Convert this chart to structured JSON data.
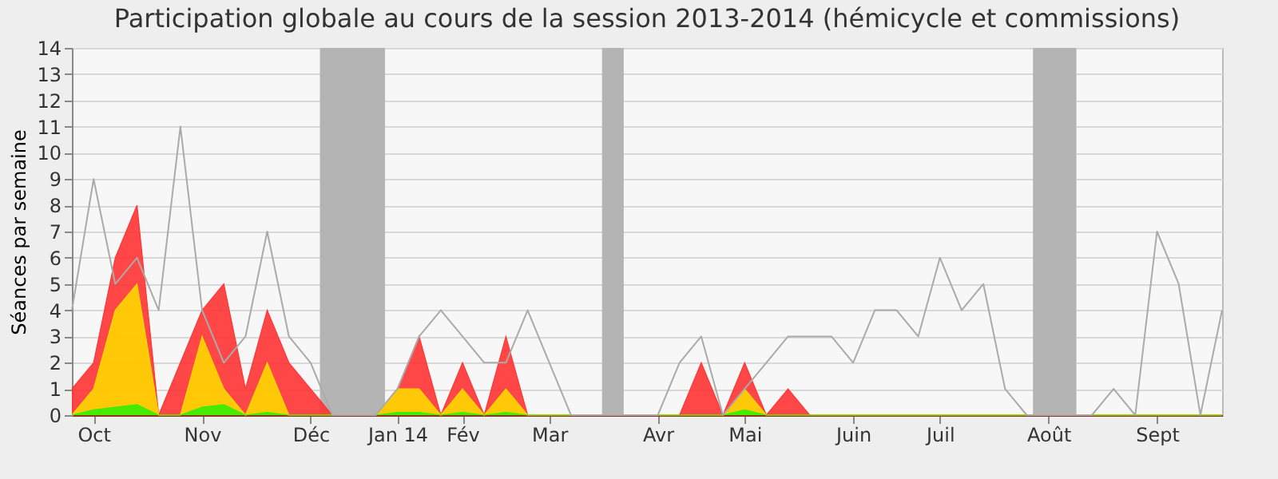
{
  "chart_data": {
    "type": "area",
    "title": "Participation globale au cours de la session 2013-2014 (hémicycle et commissions)",
    "ylabel": "Séances par semaine",
    "x": [
      "2013-09-30",
      "2013-10-07",
      "2013-10-14",
      "2013-10-21",
      "2013-10-28",
      "2013-11-04",
      "2013-11-11",
      "2013-11-18",
      "2013-11-25",
      "2013-12-02",
      "2013-12-09",
      "2013-12-16",
      "2013-12-23",
      "2013-12-30",
      "2014-01-06",
      "2014-01-13",
      "2014-01-20",
      "2014-01-27",
      "2014-02-03",
      "2014-02-10",
      "2014-02-17",
      "2014-02-24",
      "2014-03-03",
      "2014-03-10",
      "2014-03-17",
      "2014-03-24",
      "2014-03-31",
      "2014-04-07",
      "2014-04-14",
      "2014-04-21",
      "2014-04-28",
      "2014-05-05",
      "2014-05-12",
      "2014-05-19",
      "2014-05-26",
      "2014-06-02",
      "2014-06-09",
      "2014-06-16",
      "2014-06-23",
      "2014-06-30",
      "2014-07-07",
      "2014-07-14",
      "2014-07-21",
      "2014-07-28",
      "2014-08-04",
      "2014-08-11",
      "2014-08-18",
      "2014-08-25",
      "2014-09-01",
      "2014-09-08",
      "2014-09-15",
      "2014-09-22",
      "2014-09-29",
      "2014-10-06"
    ],
    "series": [
      {
        "color": "#ff3333",
        "values": [
          1,
          2,
          6,
          8,
          0,
          2,
          4,
          5,
          1,
          4,
          2,
          1,
          0,
          0,
          0,
          1,
          3,
          0,
          2,
          0,
          3,
          0,
          0,
          0,
          0,
          0,
          0,
          0,
          0,
          2,
          0,
          2,
          0,
          1,
          0,
          0,
          0,
          0,
          0,
          0,
          0,
          0,
          0,
          0,
          0,
          0,
          0,
          0,
          0,
          0,
          0,
          0,
          0,
          0
        ]
      },
      {
        "color": "#ffd700",
        "values": [
          0,
          1,
          4,
          5,
          0,
          0,
          3,
          1,
          0,
          2,
          0,
          0,
          0,
          0,
          0,
          1,
          1,
          0,
          1,
          0,
          1,
          0,
          0,
          0,
          0,
          0,
          0,
          0,
          0,
          0,
          0,
          1,
          0,
          0,
          0,
          0,
          0,
          0,
          0,
          0,
          0,
          0,
          0,
          0,
          0,
          0,
          0,
          0,
          0,
          0,
          0,
          0,
          0,
          0
        ]
      },
      {
        "color": "#33ee00",
        "values": [
          0,
          0.2,
          0.3,
          0.4,
          0,
          0,
          0.3,
          0.4,
          0,
          0.1,
          0,
          0,
          0,
          0,
          0,
          0.1,
          0.1,
          0,
          0.1,
          0,
          0.1,
          0,
          0,
          0,
          0,
          0,
          0,
          0,
          0,
          0,
          0,
          0.2,
          0,
          0,
          0,
          0,
          0,
          0,
          0,
          0,
          0,
          0,
          0,
          0,
          0,
          0,
          0,
          0,
          0,
          0,
          0,
          0,
          0,
          0
        ]
      },
      {
        "type": "line",
        "color": "#aaaaaa",
        "values": [
          4,
          9,
          5,
          6,
          4,
          11,
          4,
          2,
          3,
          7,
          3,
          2,
          0,
          0,
          0,
          1,
          3,
          4,
          3,
          2,
          2,
          4,
          2,
          0,
          0,
          0,
          0,
          0,
          2,
          3,
          0,
          1,
          2,
          3,
          3,
          3,
          2,
          4,
          4,
          3,
          6,
          4,
          5,
          1,
          0,
          0,
          0,
          0,
          1,
          0,
          7,
          5,
          0,
          4
        ]
      }
    ],
    "xlim": [
      "2013-09-30",
      "2014-10-06"
    ],
    "xticks": [
      {
        "value": "2013-10-07",
        "label": "Oct"
      },
      {
        "value": "2013-11-11",
        "label": "Nov"
      },
      {
        "value": "2013-12-16",
        "label": "Déc"
      },
      {
        "value": "2014-01-13",
        "label": "Jan 14"
      },
      {
        "value": "2014-02-03",
        "label": "Fév"
      },
      {
        "value": "2014-03-03",
        "label": "Mar"
      },
      {
        "value": "2014-04-07",
        "label": "Avr"
      },
      {
        "value": "2014-05-05",
        "label": "Mai"
      },
      {
        "value": "2014-06-09",
        "label": "Juin"
      },
      {
        "value": "2014-07-07",
        "label": "Juil"
      },
      {
        "value": "2014-08-11",
        "label": "Août"
      },
      {
        "value": "2014-09-15",
        "label": "Sept"
      }
    ],
    "ylim": [
      0,
      14
    ],
    "yticks": [
      0,
      1,
      2,
      3,
      4,
      5,
      6,
      7,
      8,
      9,
      10,
      11,
      12,
      13,
      14
    ],
    "bands": [
      {
        "axis": "x",
        "from": "2013-12-19",
        "to": "2014-01-09",
        "color": "#b4b4b4"
      },
      {
        "axis": "x",
        "from": "2014-03-20",
        "to": "2014-03-27",
        "color": "#b4b4b4"
      },
      {
        "axis": "x",
        "from": "2014-08-06",
        "to": "2014-08-20",
        "color": "#b4b4b4"
      }
    ],
    "grid": "y"
  }
}
